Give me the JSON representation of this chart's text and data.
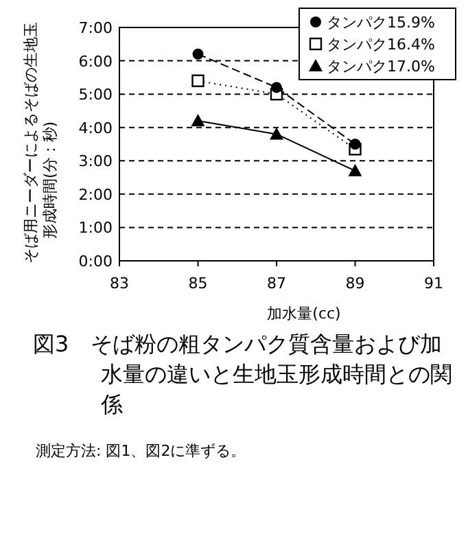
{
  "chart_data": {
    "type": "line",
    "title": "図3　そば粉の粗タンパク質含量および加水量の違いと生地玉形成時間との関係",
    "xlabel": "加水量(cc)",
    "ylabel": "そば用ニーダーによるそばの生地玉形成時間(分：秒)",
    "x": [
      85,
      87,
      89
    ],
    "series": [
      {
        "name": "タンパク15.9%",
        "color": "#000000",
        "marker": "circle",
        "line_style": "dashed",
        "values": [
          6.2,
          5.2,
          3.5
        ]
      },
      {
        "name": "タンパク16.4%",
        "color": "#000000",
        "marker": "square",
        "line_style": "dotted",
        "values": [
          5.4,
          5.0,
          3.35
        ]
      },
      {
        "name": "タンパク17.0%",
        "color": "#000000",
        "marker": "triangle",
        "line_style": "solid",
        "values": [
          4.2,
          3.8,
          2.7
        ]
      }
    ],
    "xlim": [
      83,
      91
    ],
    "xticks": [
      83,
      85,
      87,
      89,
      91
    ],
    "ylim": [
      0,
      7
    ],
    "yticks": [
      {
        "value": 0,
        "label": "0:00"
      },
      {
        "value": 1,
        "label": "1:00"
      },
      {
        "value": 2,
        "label": "2:00"
      },
      {
        "value": 3,
        "label": "3:00"
      },
      {
        "value": 4,
        "label": "4:00"
      },
      {
        "value": 5,
        "label": "5:00"
      },
      {
        "value": 6,
        "label": "6:00"
      },
      {
        "value": 7,
        "label": "7:00"
      }
    ],
    "grid": "y",
    "legend": "top right",
    "annotations": [
      "測定方法: 図1、図2に準ずる。"
    ]
  }
}
